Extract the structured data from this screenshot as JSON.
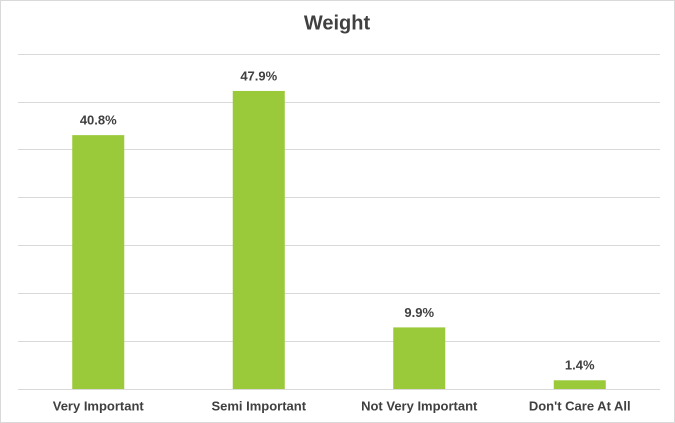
{
  "chart_data": {
    "type": "bar",
    "title": "Weight",
    "categories": [
      "Very Important",
      "Semi Important",
      "Not Very Important",
      "Don't Care At All"
    ],
    "values": [
      40.8,
      47.9,
      9.9,
      1.4
    ],
    "value_labels": [
      "40.8%",
      "47.9%",
      "9.9%",
      "1.4%"
    ],
    "color": "#9ac93a",
    "ylim": [
      0,
      54
    ],
    "yticks": [
      0,
      7.7,
      15.4,
      23.1,
      30.8,
      38.5,
      46.2,
      53.9
    ],
    "grid": true
  }
}
